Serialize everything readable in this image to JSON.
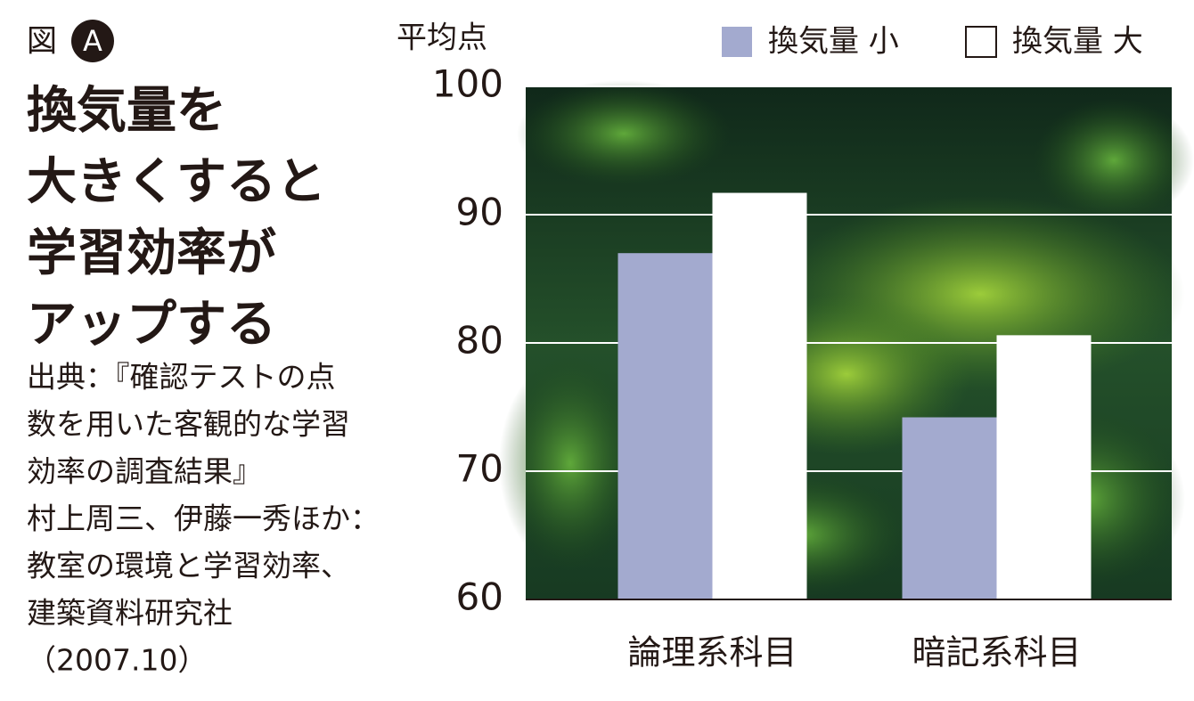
{
  "caption": {
    "figure_label": "図",
    "badge": "A",
    "title_lines": [
      "換気量を",
      "大きくすると",
      "学習効率が",
      "アップする"
    ],
    "source_lines": [
      "出典：『確認テストの点",
      "数を用いた客観的な学習",
      "効率の調査結果』",
      "村上周三、伊藤一秀ほか：",
      "教室の環境と学習効率、",
      "建築資料研究社",
      "（2007.10）"
    ]
  },
  "chart_data": {
    "type": "bar",
    "y_label": "平均点",
    "categories": [
      "論理系科目",
      "暗記系科目"
    ],
    "series": [
      {
        "name": "換気量 小",
        "color": "#a3aacf",
        "values": [
          87,
          74.2
        ]
      },
      {
        "name": "換気量 大",
        "color": "#ffffff",
        "values": [
          91.7,
          80.6
        ]
      }
    ],
    "ylim": [
      60,
      100
    ],
    "yticks": [
      60,
      70,
      80,
      90,
      100
    ],
    "grid": true,
    "legend": "top-right"
  }
}
